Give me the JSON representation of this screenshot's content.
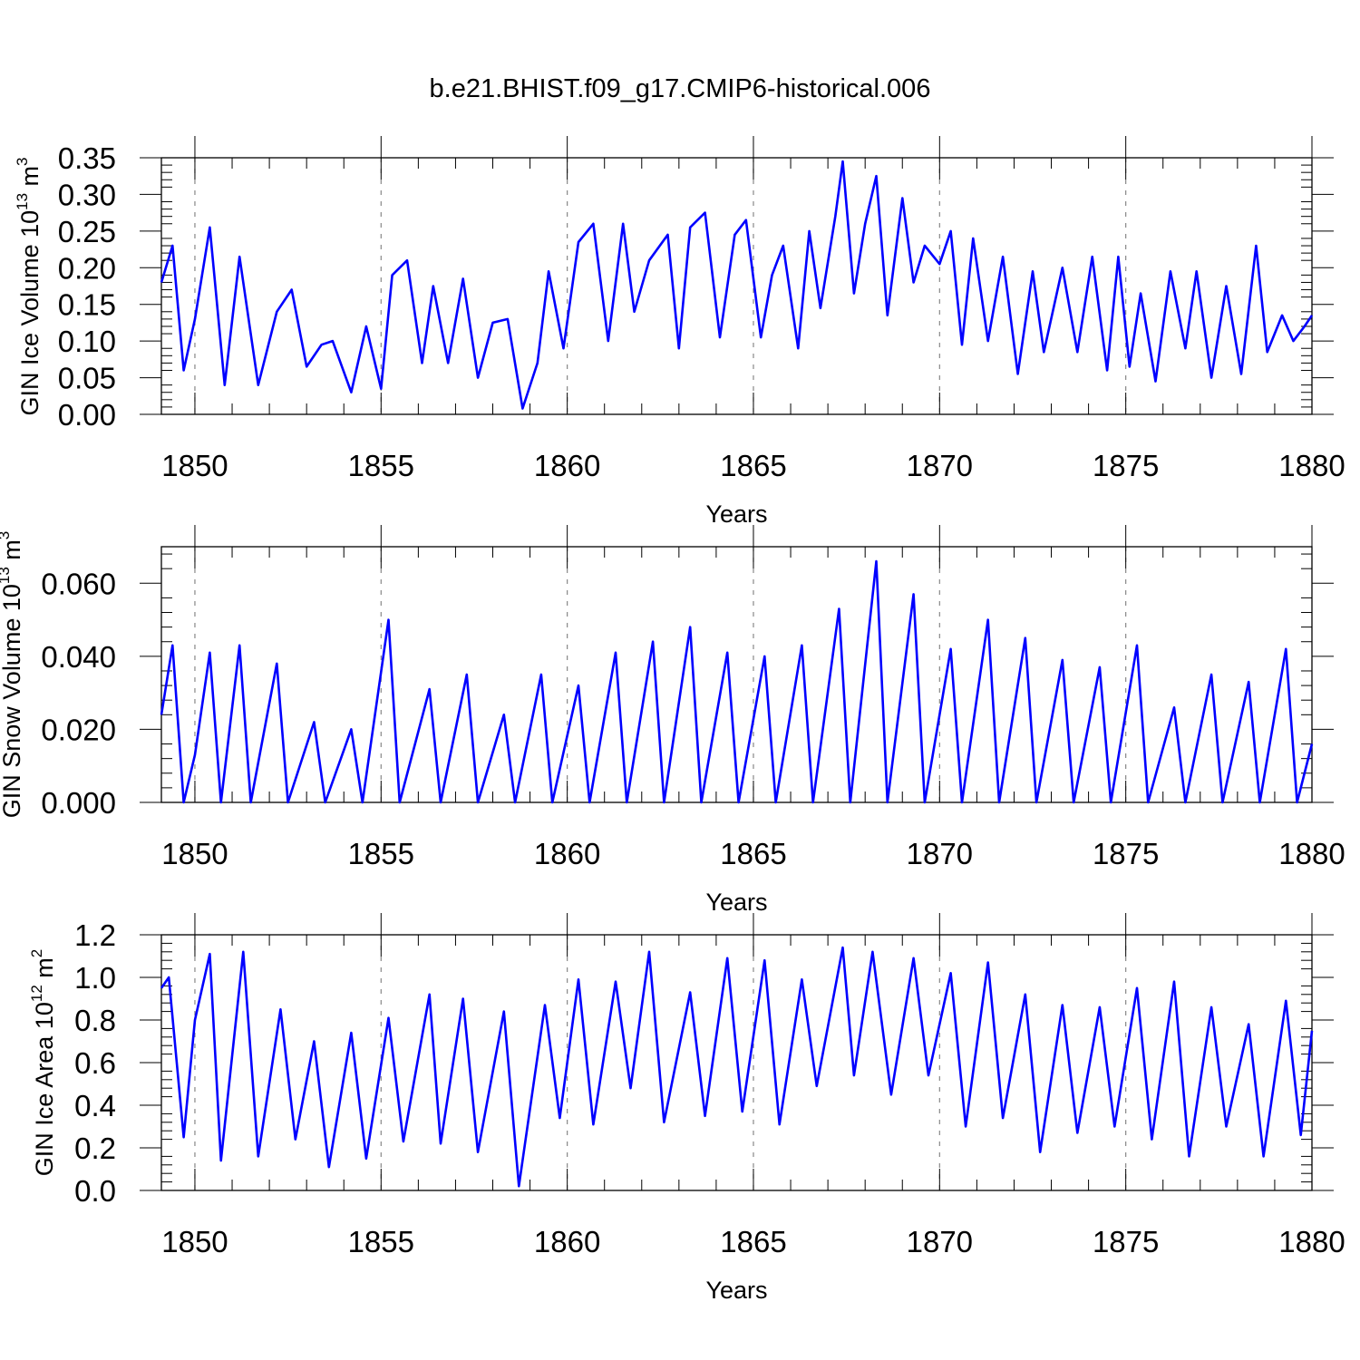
{
  "title": "b.e21.BHIST.f09_g17.CMIP6-historical.006",
  "chart_data": [
    {
      "type": "line",
      "title": "",
      "xlabel": "Years",
      "ylabel": {
        "base": "GIN Ice Volume 10",
        "exp": "13",
        "unit": " m",
        "unit_exp": "3"
      },
      "xlim": [
        1849.1,
        1880.0
      ],
      "ylim": [
        0.0,
        0.35
      ],
      "xticks": [
        "1850",
        "1855",
        "1860",
        "1865",
        "1870",
        "1875",
        "1880"
      ],
      "xtick_values": [
        1850,
        1855,
        1860,
        1865,
        1870,
        1875,
        1880
      ],
      "yticks": [
        "0.00",
        "0.05",
        "0.10",
        "0.15",
        "0.20",
        "0.25",
        "0.30",
        "0.35"
      ],
      "ytick_values": [
        0.0,
        0.05,
        0.1,
        0.15,
        0.2,
        0.25,
        0.3,
        0.35
      ],
      "series": [
        {
          "name": "GIN Ice Volume",
          "color": "#0000ff",
          "x": [
            1849.1,
            1849.4,
            1849.7,
            1850.0,
            1850.4,
            1850.8,
            1851.2,
            1851.7,
            1852.2,
            1852.6,
            1853.0,
            1853.4,
            1853.7,
            1854.2,
            1854.6,
            1855.0,
            1855.3,
            1855.7,
            1856.1,
            1856.4,
            1856.8,
            1857.2,
            1857.6,
            1858.0,
            1858.4,
            1858.8,
            1859.2,
            1859.5,
            1859.9,
            1860.3,
            1860.7,
            1861.1,
            1861.5,
            1861.8,
            1862.2,
            1862.7,
            1863.0,
            1863.3,
            1863.7,
            1864.1,
            1864.5,
            1864.8,
            1865.2,
            1865.5,
            1865.8,
            1866.2,
            1866.5,
            1866.8,
            1867.2,
            1867.4,
            1867.7,
            1868.0,
            1868.3,
            1868.6,
            1869.0,
            1869.3,
            1869.6,
            1870.0,
            1870.3,
            1870.6,
            1870.9,
            1871.3,
            1871.7,
            1872.1,
            1872.5,
            1872.8,
            1873.3,
            1873.7,
            1874.1,
            1874.5,
            1874.8,
            1875.1,
            1875.4,
            1875.8,
            1876.2,
            1876.6,
            1876.9,
            1877.3,
            1877.7,
            1878.1,
            1878.5,
            1878.8,
            1879.2,
            1879.5,
            1879.8,
            1880.0
          ],
          "values": [
            0.18,
            0.23,
            0.06,
            0.13,
            0.255,
            0.04,
            0.215,
            0.04,
            0.14,
            0.17,
            0.065,
            0.095,
            0.1,
            0.03,
            0.12,
            0.035,
            0.19,
            0.21,
            0.07,
            0.175,
            0.07,
            0.185,
            0.05,
            0.125,
            0.13,
            0.008,
            0.07,
            0.195,
            0.09,
            0.235,
            0.26,
            0.1,
            0.26,
            0.14,
            0.21,
            0.245,
            0.09,
            0.255,
            0.275,
            0.105,
            0.245,
            0.265,
            0.105,
            0.19,
            0.23,
            0.09,
            0.25,
            0.145,
            0.27,
            0.345,
            0.165,
            0.26,
            0.325,
            0.135,
            0.295,
            0.18,
            0.23,
            0.205,
            0.25,
            0.095,
            0.24,
            0.1,
            0.215,
            0.055,
            0.195,
            0.085,
            0.2,
            0.085,
            0.215,
            0.06,
            0.215,
            0.065,
            0.165,
            0.045,
            0.195,
            0.09,
            0.195,
            0.05,
            0.175,
            0.055,
            0.23,
            0.085,
            0.135,
            0.1,
            0.12,
            0.135
          ]
        }
      ]
    },
    {
      "type": "line",
      "title": "",
      "xlabel": "Years",
      "ylabel": {
        "base": "GIN Snow Volume 10",
        "exp": "13",
        "unit": " m",
        "unit_exp": "3"
      },
      "xlim": [
        1849.1,
        1880.0
      ],
      "ylim": [
        0.0,
        0.07
      ],
      "xticks": [
        "1850",
        "1855",
        "1860",
        "1865",
        "1870",
        "1875",
        "1880"
      ],
      "xtick_values": [
        1850,
        1855,
        1860,
        1865,
        1870,
        1875,
        1880
      ],
      "yticks": [
        "0.000",
        "0.020",
        "0.040",
        "0.060"
      ],
      "ytick_values": [
        0.0,
        0.02,
        0.04,
        0.06
      ],
      "series": [
        {
          "name": "GIN Snow Volume",
          "color": "#0000ff",
          "x": [
            1849.1,
            1849.4,
            1849.7,
            1850.0,
            1850.4,
            1850.7,
            1851.2,
            1851.5,
            1852.2,
            1852.5,
            1853.2,
            1853.5,
            1854.2,
            1854.5,
            1855.2,
            1855.5,
            1856.3,
            1856.6,
            1857.3,
            1857.6,
            1858.3,
            1858.6,
            1859.3,
            1859.6,
            1860.3,
            1860.6,
            1861.3,
            1861.6,
            1862.3,
            1862.6,
            1863.3,
            1863.6,
            1864.3,
            1864.6,
            1865.3,
            1865.6,
            1866.3,
            1866.6,
            1867.3,
            1867.6,
            1868.3,
            1868.6,
            1869.3,
            1869.6,
            1870.3,
            1870.6,
            1871.3,
            1871.6,
            1872.3,
            1872.6,
            1873.3,
            1873.6,
            1874.3,
            1874.6,
            1875.3,
            1875.6,
            1876.3,
            1876.6,
            1877.3,
            1877.6,
            1878.3,
            1878.6,
            1879.3,
            1879.6,
            1880.0
          ],
          "values": [
            0.024,
            0.043,
            0.0,
            0.013,
            0.041,
            0.0,
            0.043,
            0.0,
            0.038,
            0.0,
            0.022,
            0.0,
            0.02,
            0.0,
            0.05,
            0.0,
            0.031,
            0.0,
            0.035,
            0.0,
            0.024,
            0.0,
            0.035,
            0.0,
            0.032,
            0.0,
            0.041,
            0.0,
            0.044,
            0.0,
            0.048,
            0.0,
            0.041,
            0.0,
            0.04,
            0.0,
            0.043,
            0.0,
            0.053,
            0.0,
            0.066,
            0.0,
            0.057,
            0.0,
            0.042,
            0.0,
            0.05,
            0.0,
            0.045,
            0.0,
            0.039,
            0.0,
            0.037,
            0.0,
            0.043,
            0.0,
            0.026,
            0.0,
            0.035,
            0.0,
            0.033,
            0.0,
            0.042,
            0.0,
            0.016
          ]
        }
      ]
    },
    {
      "type": "line",
      "title": "",
      "xlabel": "Years",
      "ylabel": {
        "base": "GIN Ice Area 10",
        "exp": "12",
        "unit": " m",
        "unit_exp": "2"
      },
      "xlim": [
        1849.1,
        1880.0
      ],
      "ylim": [
        0.0,
        1.2
      ],
      "xticks": [
        "1850",
        "1855",
        "1860",
        "1865",
        "1870",
        "1875",
        "1880"
      ],
      "xtick_values": [
        1850,
        1855,
        1860,
        1865,
        1870,
        1875,
        1880
      ],
      "yticks": [
        "0.0",
        "0.2",
        "0.4",
        "0.6",
        "0.8",
        "1.0",
        "1.2"
      ],
      "ytick_values": [
        0.0,
        0.2,
        0.4,
        0.6,
        0.8,
        1.0,
        1.2
      ],
      "series": [
        {
          "name": "GIN Ice Area",
          "color": "#0000ff",
          "x": [
            1849.1,
            1849.3,
            1849.7,
            1850.0,
            1850.4,
            1850.7,
            1851.3,
            1851.7,
            1852.3,
            1852.7,
            1853.2,
            1853.6,
            1854.2,
            1854.6,
            1855.2,
            1855.6,
            1856.3,
            1856.6,
            1857.2,
            1857.6,
            1858.3,
            1858.7,
            1859.4,
            1859.8,
            1860.3,
            1860.7,
            1861.3,
            1861.7,
            1862.2,
            1862.6,
            1863.3,
            1863.7,
            1864.3,
            1864.7,
            1865.3,
            1865.7,
            1866.3,
            1866.7,
            1867.4,
            1867.7,
            1868.2,
            1868.7,
            1869.3,
            1869.7,
            1870.3,
            1870.7,
            1871.3,
            1871.7,
            1872.3,
            1872.7,
            1873.3,
            1873.7,
            1874.3,
            1874.7,
            1875.3,
            1875.7,
            1876.3,
            1876.7,
            1877.3,
            1877.7,
            1878.3,
            1878.7,
            1879.3,
            1879.7,
            1880.0
          ],
          "values": [
            0.95,
            1.0,
            0.25,
            0.8,
            1.11,
            0.14,
            1.12,
            0.16,
            0.85,
            0.24,
            0.7,
            0.11,
            0.74,
            0.15,
            0.81,
            0.23,
            0.92,
            0.22,
            0.9,
            0.18,
            0.84,
            0.02,
            0.87,
            0.34,
            0.99,
            0.31,
            0.98,
            0.48,
            1.12,
            0.32,
            0.93,
            0.35,
            1.09,
            0.37,
            1.08,
            0.31,
            0.99,
            0.49,
            1.14,
            0.54,
            1.12,
            0.45,
            1.09,
            0.54,
            1.02,
            0.3,
            1.07,
            0.34,
            0.92,
            0.18,
            0.87,
            0.27,
            0.86,
            0.3,
            0.95,
            0.24,
            0.98,
            0.16,
            0.86,
            0.3,
            0.78,
            0.16,
            0.89,
            0.26,
            0.75
          ]
        }
      ]
    }
  ]
}
